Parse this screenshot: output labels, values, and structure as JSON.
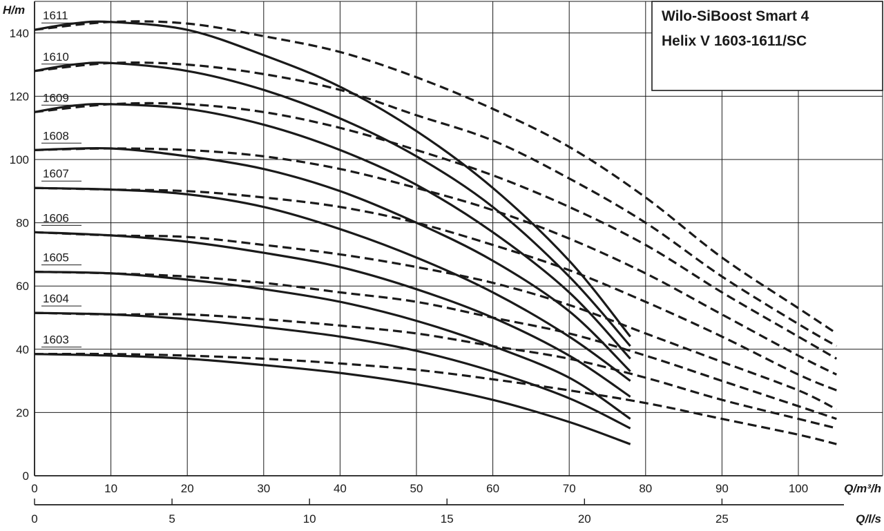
{
  "chart_data": {
    "type": "line",
    "title": [
      "Wilo-SiBoost Smart 4",
      "Helix V 1603-1611/SC"
    ],
    "ylabel": "H/m",
    "xlabel": "Q/m³/h",
    "x2label": "Q/l/s",
    "xlim": [
      0,
      110
    ],
    "ylim": [
      0,
      150
    ],
    "x_ticks": [
      0,
      10,
      20,
      30,
      40,
      50,
      60,
      70,
      80,
      90,
      100
    ],
    "y_ticks": [
      0,
      20,
      40,
      60,
      80,
      100,
      120,
      140
    ],
    "x2_ticks": [
      0,
      5,
      10,
      15,
      20,
      25
    ],
    "grid": true,
    "colors": {
      "line": "#1a1a1a",
      "grid": "#1a1a1a"
    },
    "series": [
      {
        "name": "1611",
        "solid": [
          [
            0,
            141
          ],
          [
            5,
            143
          ],
          [
            10,
            143.5
          ],
          [
            20,
            141
          ],
          [
            30,
            133
          ],
          [
            40,
            123
          ],
          [
            50,
            109
          ],
          [
            60,
            91
          ],
          [
            70,
            68
          ],
          [
            78,
            44
          ]
        ],
        "dashed": [
          [
            0,
            141
          ],
          [
            10,
            143.5
          ],
          [
            20,
            143
          ],
          [
            30,
            139
          ],
          [
            40,
            134
          ],
          [
            50,
            126
          ],
          [
            60,
            116
          ],
          [
            70,
            104
          ],
          [
            80,
            88
          ],
          [
            90,
            69
          ],
          [
            100,
            53
          ],
          [
            105,
            45
          ]
        ]
      },
      {
        "name": "1610",
        "solid": [
          [
            0,
            128
          ],
          [
            5,
            130
          ],
          [
            10,
            130.5
          ],
          [
            20,
            128
          ],
          [
            30,
            122
          ],
          [
            40,
            113
          ],
          [
            50,
            101
          ],
          [
            60,
            85
          ],
          [
            70,
            63
          ],
          [
            78,
            41
          ]
        ],
        "dashed": [
          [
            0,
            128
          ],
          [
            10,
            130.5
          ],
          [
            20,
            130
          ],
          [
            30,
            127
          ],
          [
            40,
            122
          ],
          [
            50,
            114
          ],
          [
            60,
            106
          ],
          [
            70,
            94
          ],
          [
            80,
            80
          ],
          [
            90,
            63
          ],
          [
            100,
            48
          ],
          [
            105,
            41
          ]
        ]
      },
      {
        "name": "1609",
        "solid": [
          [
            0,
            115
          ],
          [
            5,
            117
          ],
          [
            10,
            117.5
          ],
          [
            20,
            116
          ],
          [
            30,
            111
          ],
          [
            40,
            103
          ],
          [
            50,
            92
          ],
          [
            60,
            77
          ],
          [
            70,
            58
          ],
          [
            78,
            37
          ]
        ],
        "dashed": [
          [
            0,
            115
          ],
          [
            10,
            117.5
          ],
          [
            20,
            117.5
          ],
          [
            30,
            115
          ],
          [
            40,
            110
          ],
          [
            50,
            103
          ],
          [
            60,
            95
          ],
          [
            70,
            85
          ],
          [
            80,
            73
          ],
          [
            90,
            58
          ],
          [
            100,
            44
          ],
          [
            105,
            37
          ]
        ]
      },
      {
        "name": "1608",
        "solid": [
          [
            0,
            103
          ],
          [
            10,
            103.5
          ],
          [
            20,
            101
          ],
          [
            30,
            97
          ],
          [
            40,
            90
          ],
          [
            50,
            80
          ],
          [
            60,
            68
          ],
          [
            70,
            52
          ],
          [
            78,
            33
          ]
        ],
        "dashed": [
          [
            0,
            103
          ],
          [
            10,
            103.5
          ],
          [
            20,
            103
          ],
          [
            30,
            101
          ],
          [
            40,
            97
          ],
          [
            50,
            91
          ],
          [
            60,
            84
          ],
          [
            70,
            75
          ],
          [
            80,
            64
          ],
          [
            90,
            51
          ],
          [
            100,
            38
          ],
          [
            105,
            32
          ]
        ]
      },
      {
        "name": "1607",
        "solid": [
          [
            0,
            91
          ],
          [
            10,
            90.5
          ],
          [
            20,
            89
          ],
          [
            30,
            85
          ],
          [
            40,
            78
          ],
          [
            50,
            69
          ],
          [
            60,
            58
          ],
          [
            70,
            44
          ],
          [
            78,
            30
          ]
        ],
        "dashed": [
          [
            0,
            91
          ],
          [
            10,
            90.5
          ],
          [
            20,
            90
          ],
          [
            30,
            88
          ],
          [
            40,
            85
          ],
          [
            50,
            80
          ],
          [
            60,
            73
          ],
          [
            70,
            65
          ],
          [
            80,
            55
          ],
          [
            90,
            44
          ],
          [
            100,
            32
          ],
          [
            105,
            27
          ]
        ]
      },
      {
        "name": "1606",
        "solid": [
          [
            0,
            77
          ],
          [
            10,
            76
          ],
          [
            20,
            74
          ],
          [
            30,
            70.5
          ],
          [
            40,
            66
          ],
          [
            50,
            59
          ],
          [
            60,
            50
          ],
          [
            70,
            38
          ],
          [
            78,
            25
          ]
        ],
        "dashed": [
          [
            0,
            77
          ],
          [
            10,
            76
          ],
          [
            20,
            75.5
          ],
          [
            30,
            73
          ],
          [
            40,
            70
          ],
          [
            50,
            66
          ],
          [
            60,
            61
          ],
          [
            70,
            54
          ],
          [
            80,
            45
          ],
          [
            90,
            36
          ],
          [
            100,
            27
          ],
          [
            105,
            21
          ]
        ]
      },
      {
        "name": "1605",
        "solid": [
          [
            0,
            64.5
          ],
          [
            10,
            64
          ],
          [
            20,
            62
          ],
          [
            30,
            59
          ],
          [
            40,
            55
          ],
          [
            50,
            49
          ],
          [
            60,
            41
          ],
          [
            70,
            31
          ],
          [
            78,
            18
          ]
        ],
        "dashed": [
          [
            0,
            64.5
          ],
          [
            10,
            64
          ],
          [
            20,
            63
          ],
          [
            30,
            61
          ],
          [
            40,
            58
          ],
          [
            50,
            55
          ],
          [
            60,
            50
          ],
          [
            70,
            45
          ],
          [
            80,
            38
          ],
          [
            90,
            30
          ],
          [
            100,
            22
          ],
          [
            105,
            18
          ]
        ]
      },
      {
        "name": "1604",
        "solid": [
          [
            0,
            51.5
          ],
          [
            10,
            51
          ],
          [
            20,
            49.5
          ],
          [
            30,
            47
          ],
          [
            40,
            44
          ],
          [
            50,
            39.5
          ],
          [
            60,
            33
          ],
          [
            70,
            24.5
          ],
          [
            78,
            15
          ]
        ],
        "dashed": [
          [
            0,
            51.5
          ],
          [
            10,
            51
          ],
          [
            20,
            51
          ],
          [
            30,
            49.5
          ],
          [
            40,
            47.5
          ],
          [
            50,
            45
          ],
          [
            60,
            41
          ],
          [
            70,
            37
          ],
          [
            80,
            31
          ],
          [
            90,
            24
          ],
          [
            100,
            18
          ],
          [
            105,
            15
          ]
        ]
      },
      {
        "name": "1603",
        "solid": [
          [
            0,
            38.5
          ],
          [
            10,
            38
          ],
          [
            20,
            37
          ],
          [
            30,
            35
          ],
          [
            40,
            32.5
          ],
          [
            50,
            29
          ],
          [
            60,
            24
          ],
          [
            70,
            17
          ],
          [
            78,
            10
          ]
        ],
        "dashed": [
          [
            0,
            38.5
          ],
          [
            10,
            38.5
          ],
          [
            20,
            38
          ],
          [
            30,
            37
          ],
          [
            40,
            35.5
          ],
          [
            50,
            33.5
          ],
          [
            60,
            30.5
          ],
          [
            70,
            27
          ],
          [
            80,
            23
          ],
          [
            90,
            18
          ],
          [
            100,
            13
          ],
          [
            105,
            10
          ]
        ]
      }
    ]
  }
}
